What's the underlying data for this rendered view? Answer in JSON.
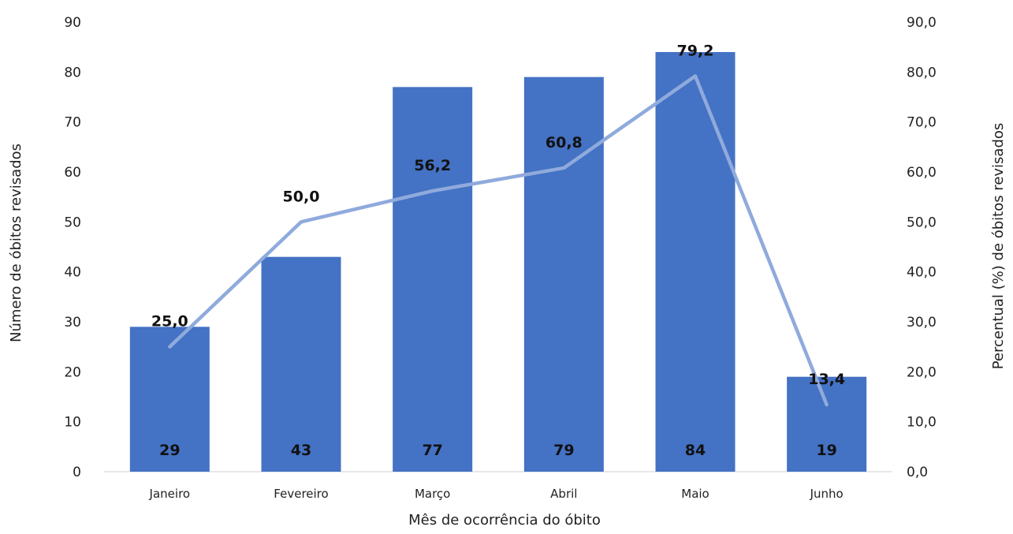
{
  "chart_data": {
    "type": "bar",
    "title": "",
    "categories": [
      "Janeiro",
      "Fevereiro",
      "Março",
      "Abril",
      "Maio",
      "Junho"
    ],
    "xlabel": "Mês de ocorrência do óbito",
    "ylabel": "Número de óbitos revisados",
    "y2label": "Percentual (%) de óbitos revisados",
    "ylim": [
      0,
      90
    ],
    "y2lim": [
      0,
      90
    ],
    "yticks": [
      "0",
      "10",
      "20",
      "30",
      "40",
      "50",
      "60",
      "70",
      "80",
      "90"
    ],
    "y2ticks": [
      "0,0",
      "10,0",
      "20,0",
      "30,0",
      "40,0",
      "50,0",
      "60,0",
      "70,0",
      "80,0",
      "90,0"
    ],
    "series": [
      {
        "type": "bar",
        "axis": "left",
        "values": [
          29,
          43,
          77,
          79,
          84,
          19
        ],
        "labels": [
          "29",
          "43",
          "77",
          "79",
          "84",
          "19"
        ],
        "color": "#4472c4"
      },
      {
        "type": "line",
        "axis": "right",
        "values": [
          25.0,
          50.0,
          56.2,
          60.8,
          79.2,
          13.4
        ],
        "labels": [
          "25,0",
          "50,0",
          "56,2",
          "60,8",
          "79,2",
          "13,4"
        ],
        "color": "#8faadc"
      }
    ],
    "grid": false,
    "legend": "none"
  }
}
